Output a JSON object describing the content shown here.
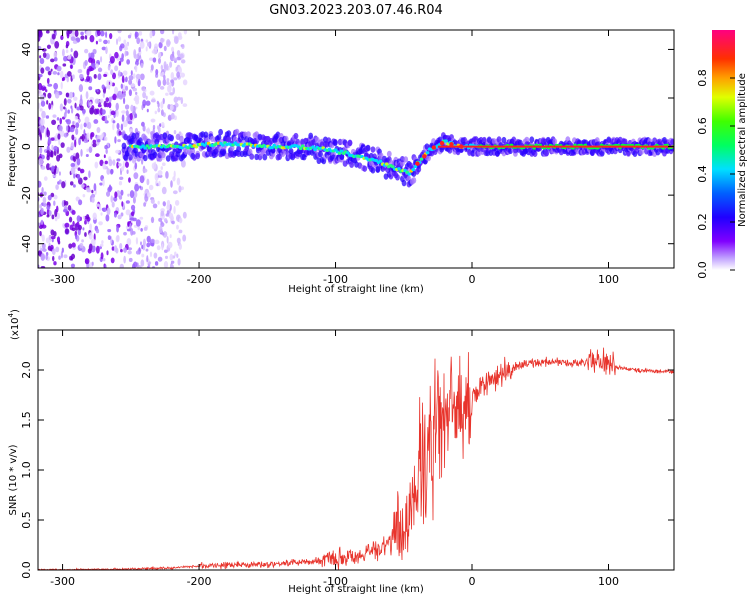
{
  "title": "GN03.2023.203.07.46.R04",
  "colors": {
    "snr_line": "#e8342c",
    "spectrogram_base": "#7a00e8",
    "ridge_low": "#2600ff",
    "ridge_mid": "#00e0ff",
    "ridge_high": "#ff2020"
  },
  "chart_data": [
    {
      "type": "heatmap",
      "title": "",
      "xlabel": "Height of straight line (km)",
      "ylabel": "Frequency (Hz)",
      "xlim": [
        -318,
        148
      ],
      "ylim": [
        -50,
        48
      ],
      "xticks": [
        "-300",
        "-200",
        "-100",
        "0",
        "100"
      ],
      "xtick_values": [
        -300,
        -200,
        -100,
        0,
        100
      ],
      "yticks": [
        "-40",
        "-20",
        "0",
        "20",
        "40"
      ],
      "ytick_values": [
        -40,
        -20,
        0,
        20,
        40
      ],
      "colorbar": {
        "label": "Normalized spectral amplitude",
        "ticks": [
          "0.0",
          "0.2",
          "0.4",
          "0.6",
          "0.8"
        ],
        "tick_values": [
          0.0,
          0.2,
          0.4,
          0.6,
          0.8
        ],
        "range": [
          0,
          1
        ],
        "colormap": [
          "#ffffff",
          "#8000ff",
          "#0000ff",
          "#00ffff",
          "#00ff00",
          "#ffff00",
          "#ff8000",
          "#ff0000",
          "#ff0080"
        ]
      },
      "ridge": {
        "x": [
          -250,
          -230,
          -210,
          -190,
          -170,
          -150,
          -130,
          -110,
          -90,
          -70,
          -55,
          -45,
          -40,
          -30,
          -20,
          -10,
          0,
          50,
          100,
          148
        ],
        "y": [
          0,
          0,
          0,
          1,
          1,
          0,
          0,
          -1,
          -3,
          -6,
          -9,
          -11,
          -7,
          -1,
          2,
          0,
          0,
          0,
          0,
          0
        ]
      },
      "noise_region": [
        -318,
        -210
      ],
      "grid": false
    },
    {
      "type": "line",
      "title": "",
      "xlabel": "Height of straight line (km)",
      "ylabel": "SNR (10 * v/v)",
      "yscale_label": "(x10",
      "yscale_exp": "4",
      "xlim": [
        -318,
        148
      ],
      "ylim": [
        0,
        2.4
      ],
      "xticks": [
        "-300",
        "-200",
        "-100",
        "0",
        "100"
      ],
      "xtick_values": [
        -300,
        -200,
        -100,
        0,
        100
      ],
      "yticks": [
        "0.0",
        "0.5",
        "1.0",
        "1.5",
        "2.0"
      ],
      "ytick_values": [
        0.0,
        0.5,
        1.0,
        1.5,
        2.0
      ],
      "series": [
        {
          "x": [
            -318,
            -300,
            -250,
            -220,
            -200,
            -180,
            -150,
            -120,
            -100,
            -80,
            -70,
            -60,
            -50,
            -45,
            -40,
            -35,
            -30,
            -25,
            -20,
            -15,
            -10,
            -5,
            0,
            10,
            20,
            30,
            40,
            50,
            60,
            70,
            80,
            90,
            95,
            100,
            110,
            120,
            130,
            148
          ],
          "y": [
            0.0,
            0.0,
            0.01,
            0.02,
            0.04,
            0.05,
            0.06,
            0.08,
            0.12,
            0.15,
            0.2,
            0.3,
            0.45,
            0.6,
            0.85,
            1.05,
            1.25,
            1.4,
            1.55,
            1.6,
            1.6,
            1.65,
            1.72,
            1.85,
            1.95,
            2.02,
            2.06,
            2.08,
            2.08,
            2.07,
            2.07,
            2.08,
            2.1,
            2.05,
            2.02,
            2.0,
            1.99,
            1.98
          ]
        }
      ],
      "grid": false
    }
  ]
}
